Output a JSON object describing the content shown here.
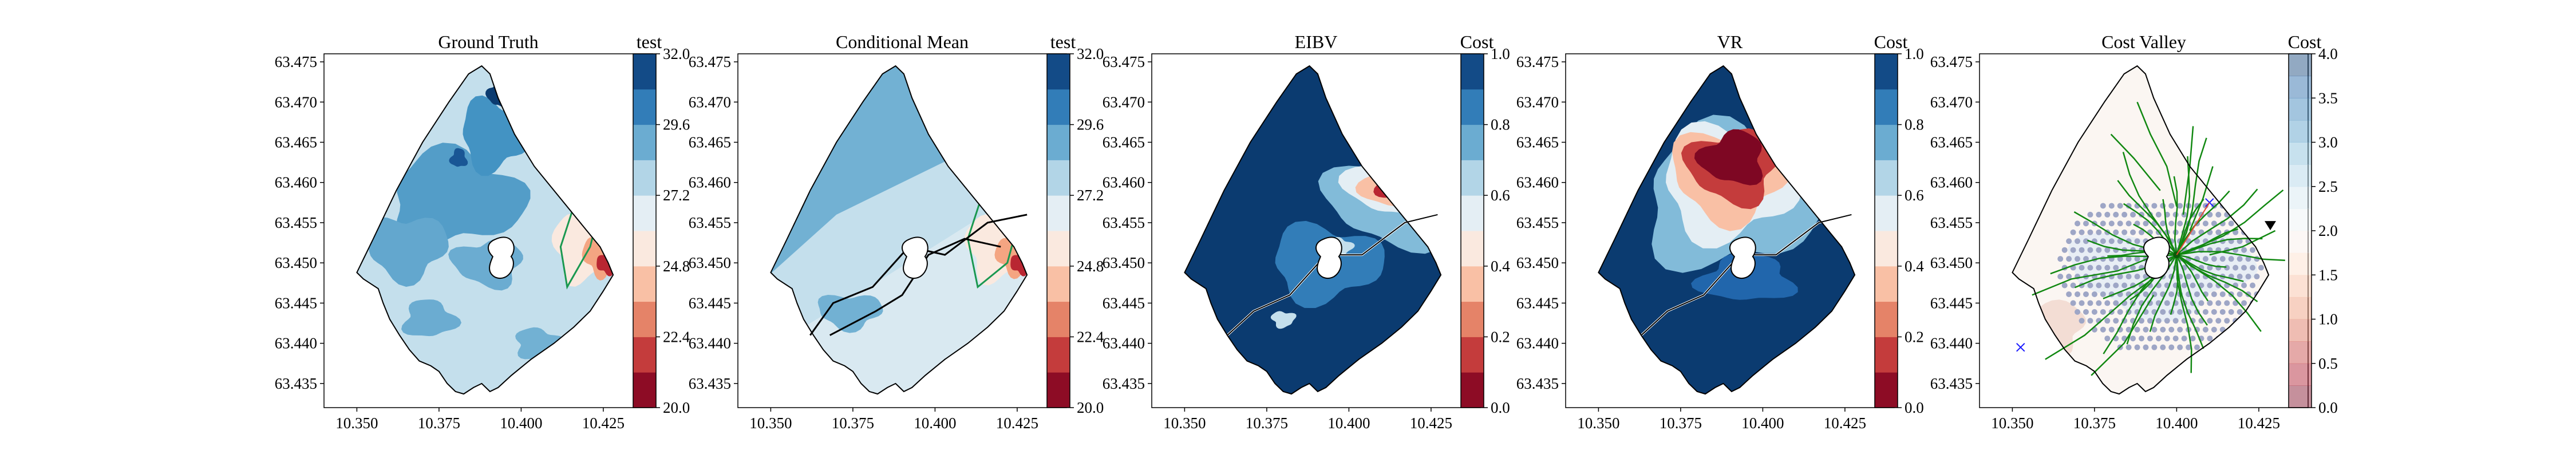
{
  "chart_data": [
    {
      "type": "heatmap",
      "title": "Ground Truth",
      "xticks": [
        "10.350",
        "10.375",
        "10.400",
        "10.425"
      ],
      "yticks": [
        "63.435",
        "63.440",
        "63.445",
        "63.450",
        "63.455",
        "63.460",
        "63.465",
        "63.470",
        "63.475"
      ],
      "xlim": [
        10.34,
        10.44
      ],
      "ylim": [
        63.432,
        63.476
      ],
      "colorbar": {
        "label": "test",
        "ticks": [
          "20.0",
          "22.4",
          "24.8",
          "27.2",
          "29.6",
          "32.0"
        ],
        "range": [
          20,
          32
        ],
        "colormap": "RdBu"
      }
    },
    {
      "type": "heatmap",
      "title": "Conditional Mean",
      "xticks": [
        "10.350",
        "10.375",
        "10.400",
        "10.425"
      ],
      "yticks": [
        "63.435",
        "63.440",
        "63.445",
        "63.450",
        "63.455",
        "63.460",
        "63.465",
        "63.470",
        "63.475"
      ],
      "xlim": [
        10.34,
        10.44
      ],
      "ylim": [
        63.432,
        63.476
      ],
      "colorbar": {
        "label": "test",
        "ticks": [
          "20.0",
          "22.4",
          "24.8",
          "27.2",
          "29.6",
          "32.0"
        ],
        "range": [
          20,
          32
        ],
        "colormap": "RdBu"
      }
    },
    {
      "type": "heatmap",
      "title": "EIBV",
      "xticks": [
        "10.350",
        "10.375",
        "10.400",
        "10.425"
      ],
      "yticks": [
        "63.435",
        "63.440",
        "63.445",
        "63.450",
        "63.455",
        "63.460",
        "63.465",
        "63.470",
        "63.475"
      ],
      "xlim": [
        10.34,
        10.44
      ],
      "ylim": [
        63.432,
        63.476
      ],
      "colorbar": {
        "label": "Cost",
        "ticks": [
          "0.0",
          "0.2",
          "0.4",
          "0.6",
          "0.8",
          "1.0"
        ],
        "range": [
          0,
          1
        ],
        "colormap": "RdBu"
      }
    },
    {
      "type": "heatmap",
      "title": "VR",
      "xticks": [
        "10.350",
        "10.375",
        "10.400",
        "10.425"
      ],
      "yticks": [
        "63.435",
        "63.440",
        "63.445",
        "63.450",
        "63.455",
        "63.460",
        "63.465",
        "63.470",
        "63.475"
      ],
      "xlim": [
        10.34,
        10.44
      ],
      "ylim": [
        63.432,
        63.476
      ],
      "colorbar": {
        "label": "Cost",
        "ticks": [
          "0.0",
          "0.2",
          "0.4",
          "0.6",
          "0.8",
          "1.0"
        ],
        "range": [
          0,
          1
        ],
        "colormap": "RdBu"
      }
    },
    {
      "type": "heatmap",
      "title": "Cost Valley",
      "xticks": [
        "10.350",
        "10.375",
        "10.400",
        "10.425"
      ],
      "yticks": [
        "63.435",
        "63.440",
        "63.445",
        "63.450",
        "63.455",
        "63.460",
        "63.465",
        "63.470",
        "63.475"
      ],
      "xlim": [
        10.34,
        10.44
      ],
      "ylim": [
        63.432,
        63.476
      ],
      "colorbar": {
        "label": "Cost",
        "ticks": [
          "0.0",
          "0.5",
          "1.0",
          "1.5",
          "2.0",
          "2.5",
          "3.0",
          "3.5",
          "4.0"
        ],
        "range": [
          0,
          4
        ],
        "colormap": "RdBu-transparent"
      }
    }
  ]
}
